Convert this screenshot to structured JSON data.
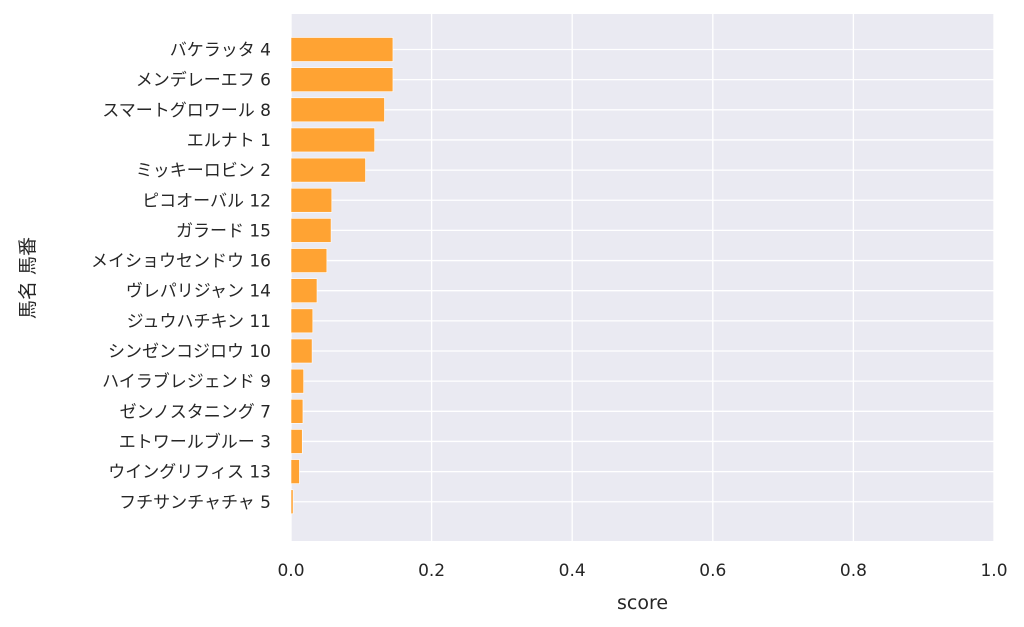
{
  "chart_data": {
    "type": "bar",
    "orientation": "horizontal",
    "categories": [
      "バケラッタ 4",
      "メンデレーエフ 6",
      "スマートグロワール 8",
      "エルナト 1",
      "ミッキーロビン 2",
      "ピコオーバル 12",
      "ガラード 15",
      "メイショウセンドウ 16",
      "ヴレパリジャン 14",
      "ジュウハチキン 11",
      "シンゼンコジロウ 10",
      "ハイラブレジェンド 9",
      "ゼンノスタニング 7",
      "エトワールブルー 3",
      "ウイングリフィス 13",
      "フチサンチャチャ 5"
    ],
    "values": [
      0.145,
      0.145,
      0.133,
      0.119,
      0.106,
      0.058,
      0.057,
      0.051,
      0.037,
      0.031,
      0.03,
      0.018,
      0.017,
      0.016,
      0.012,
      0.003
    ],
    "xlabel": "score",
    "ylabel": "馬名 馬番",
    "xlim": [
      0,
      1.0
    ],
    "xticks": [
      "0.0",
      "0.2",
      "0.4",
      "0.6",
      "0.8",
      "1.0"
    ],
    "grid": true,
    "bar_color": "#ffa333",
    "plot_background": "#eaeaf2"
  }
}
